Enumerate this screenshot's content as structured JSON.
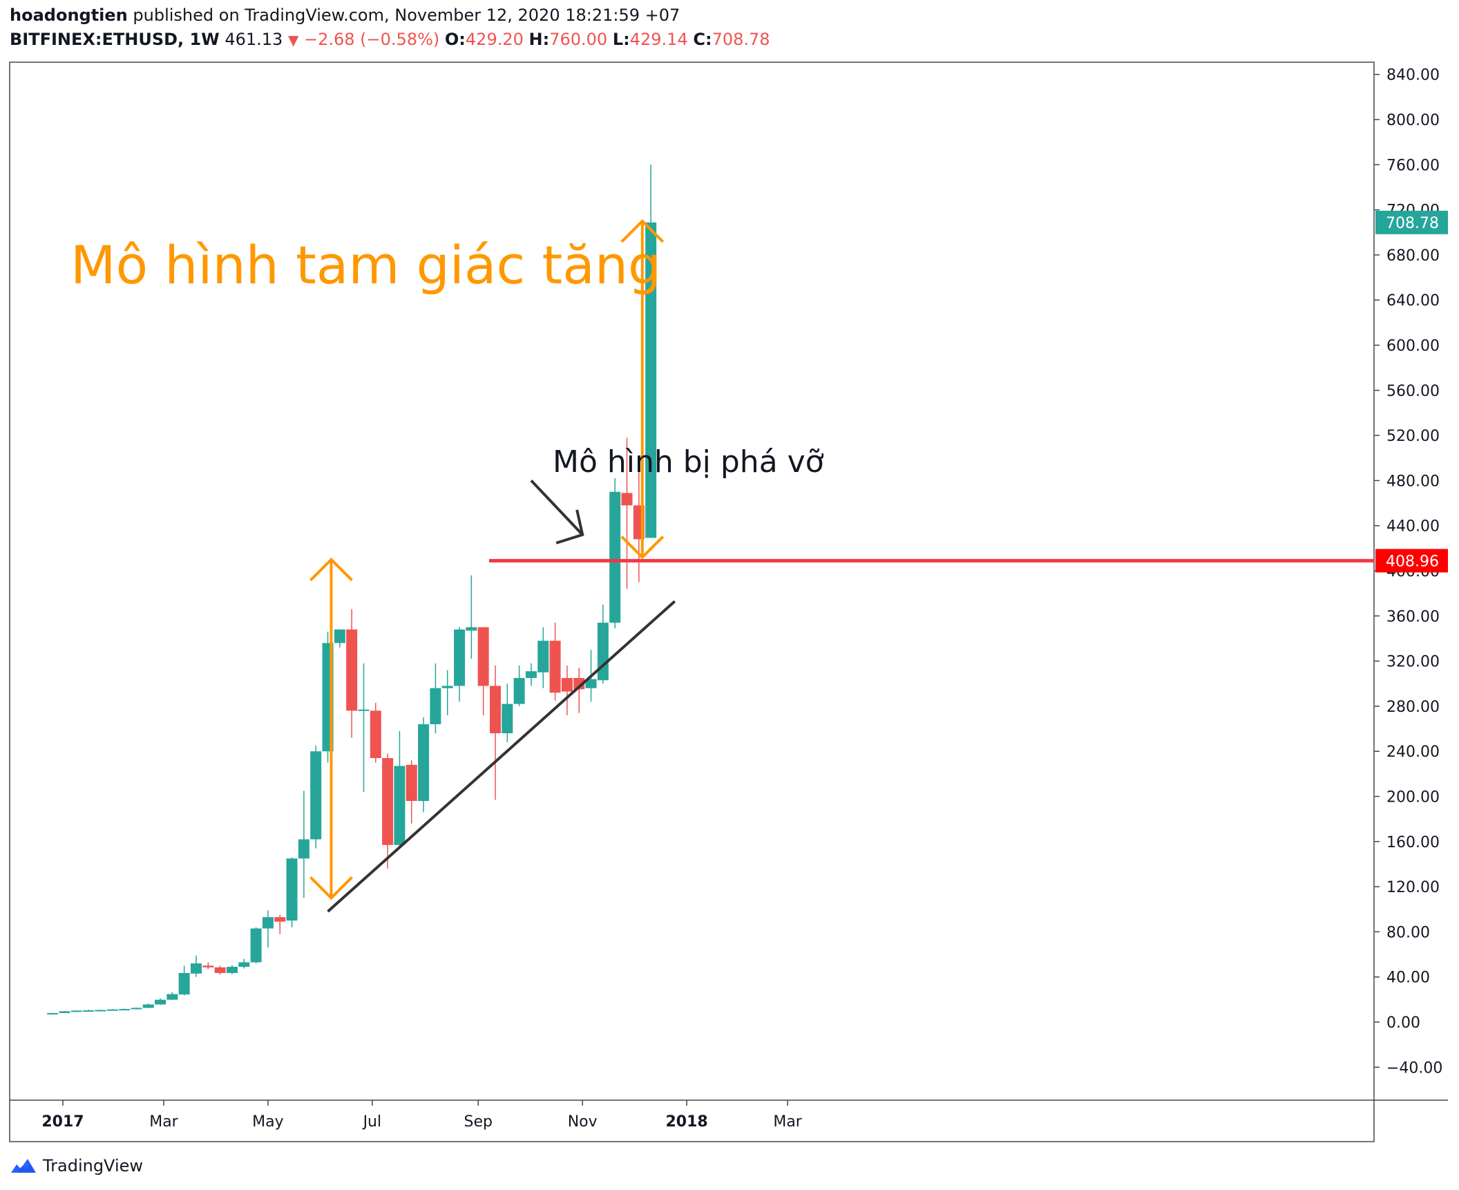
{
  "header": {
    "author": "hoadongtien",
    "published_text": "published on TradingView.com, November 12, 2020 18:21:59 +07",
    "symbol": "BITFINEX:ETHUSD, 1W",
    "last_price": "461.13",
    "change": "−2.68 (−0.58%)",
    "o_label": "O:",
    "o_value": "429.20",
    "h_label": "H:",
    "h_value": "760.00",
    "l_label": "L:",
    "l_value": "429.14",
    "c_label": "C:",
    "c_value": "708.78"
  },
  "footer": {
    "brand": "TradingView"
  },
  "colors": {
    "up": "#26a69a",
    "down": "#ef5350",
    "annotation": "#ff9800",
    "resistance": "#f23645",
    "trendline": "#333333"
  },
  "chart_data": {
    "type": "candlestick",
    "symbol": "BITFINEX:ETHUSD",
    "interval": "1W",
    "title": "Mô hình tam giác tăng",
    "annotation_text": "Mô hình bị phá vỡ",
    "x_ticks": [
      "2017",
      "Mar",
      "May",
      "Jul",
      "Sep",
      "Nov",
      "2018",
      "Mar"
    ],
    "y_ticks": [
      "840.00",
      "800.00",
      "760.00",
      "720.00",
      "680.00",
      "640.00",
      "600.00",
      "560.00",
      "520.00",
      "480.00",
      "440.00",
      "400.00",
      "360.00",
      "320.00",
      "280.00",
      "240.00",
      "200.00",
      "160.00",
      "120.00",
      "80.00",
      "40.00",
      "0.00",
      "−40.00"
    ],
    "ylim": [
      -60,
      860
    ],
    "price_labels": {
      "last_close": "708.78",
      "resistance": "408.96"
    },
    "resistance_level": 408.96,
    "trendline": {
      "from": [
        "2017-06-05",
        98
      ],
      "to": [
        "2017-12-25",
        373
      ]
    },
    "measure_arrows": [
      {
        "date": "2017-06-07",
        "from": 410,
        "to": 110
      },
      {
        "date": "2017-12-06",
        "from": 710,
        "to": 412
      }
    ],
    "break_arrow": {
      "from": [
        "2017-10-02",
        480
      ],
      "to": [
        "2017-11-01",
        432
      ]
    },
    "candles": [
      [
        "2016-12-26",
        7.9,
        8.2,
        7.6,
        8.0
      ],
      [
        "2017-01-02",
        8.0,
        9.8,
        7.9,
        9.6
      ],
      [
        "2017-01-09",
        9.6,
        10.5,
        9.3,
        10.2
      ],
      [
        "2017-01-16",
        10.2,
        11.0,
        9.8,
        10.4
      ],
      [
        "2017-01-23",
        10.4,
        11.2,
        10.1,
        10.7
      ],
      [
        "2017-01-30",
        10.7,
        11.5,
        10.5,
        11.2
      ],
      [
        "2017-02-06",
        11.2,
        12.0,
        10.9,
        11.6
      ],
      [
        "2017-02-13",
        11.6,
        13.0,
        11.3,
        12.6
      ],
      [
        "2017-02-20",
        12.6,
        16.5,
        12.3,
        15.6
      ],
      [
        "2017-02-27",
        15.6,
        21.0,
        15.2,
        19.8
      ],
      [
        "2017-03-06",
        19.8,
        26.5,
        19.5,
        24.8
      ],
      [
        "2017-03-13",
        24.5,
        50.0,
        23.5,
        43.5
      ],
      [
        "2017-03-20",
        43.0,
        59.0,
        40.0,
        52.0
      ],
      [
        "2017-03-27",
        50.0,
        53.0,
        47.0,
        48.5
      ],
      [
        "2017-04-03",
        48.5,
        50.0,
        42.0,
        43.5
      ],
      [
        "2017-04-10",
        43.5,
        50.5,
        42.5,
        49.0
      ],
      [
        "2017-04-17",
        49.0,
        56.0,
        47.5,
        53.0
      ],
      [
        "2017-04-24",
        53.0,
        84.0,
        52.0,
        83.0
      ],
      [
        "2017-05-01",
        83.0,
        99.0,
        66.0,
        93.0
      ],
      [
        "2017-05-08",
        93.0,
        95.0,
        78.0,
        89.0
      ],
      [
        "2017-05-15",
        90.0,
        146.0,
        84.0,
        145.0
      ],
      [
        "2017-05-22",
        145.0,
        205.0,
        110.0,
        162.0
      ],
      [
        "2017-05-29",
        162.0,
        245.0,
        154.0,
        240.0
      ],
      [
        "2017-06-05",
        240.0,
        346.0,
        230.0,
        336.0
      ],
      [
        "2017-06-12",
        336.0,
        348.0,
        332.0,
        348.0
      ],
      [
        "2017-06-19",
        348.0,
        366.0,
        252.0,
        276.0
      ],
      [
        "2017-06-26",
        276.0,
        318.0,
        204.0,
        277.0
      ],
      [
        "2017-07-03",
        276.0,
        283.0,
        230.0,
        234.0
      ],
      [
        "2017-07-10",
        234.0,
        238.0,
        136.0,
        157.0
      ],
      [
        "2017-07-17",
        157.0,
        258.0,
        154.0,
        227.0
      ],
      [
        "2017-07-24",
        228.0,
        232.0,
        176.0,
        196.0
      ],
      [
        "2017-07-31",
        196.0,
        270.0,
        186.0,
        264.0
      ],
      [
        "2017-08-07",
        264.0,
        318.0,
        256.0,
        296.0
      ],
      [
        "2017-08-14",
        296.0,
        312.0,
        272.0,
        298.0
      ],
      [
        "2017-08-21",
        298.0,
        350.0,
        284.0,
        348.0
      ],
      [
        "2017-08-28",
        347.0,
        396.0,
        322.0,
        350.0
      ],
      [
        "2017-09-04",
        350.0,
        350.0,
        272.0,
        298.0
      ],
      [
        "2017-09-11",
        298.0,
        316.0,
        197.0,
        256.0
      ],
      [
        "2017-09-18",
        256.0,
        300.0,
        248.0,
        282.0
      ],
      [
        "2017-09-25",
        282.0,
        316.0,
        280.0,
        305.0
      ],
      [
        "2017-10-02",
        305.0,
        318.0,
        298.0,
        311.0
      ],
      [
        "2017-10-09",
        310.0,
        350.0,
        296.0,
        338.0
      ],
      [
        "2017-10-16",
        338.0,
        354.0,
        285.0,
        292.0
      ],
      [
        "2017-10-23",
        305.0,
        316.0,
        272.0,
        293.0
      ],
      [
        "2017-10-30",
        305.0,
        314.0,
        274.0,
        295.0
      ],
      [
        "2017-11-06",
        296.0,
        330.0,
        284.0,
        304.0
      ],
      [
        "2017-11-13",
        303.0,
        370.0,
        300.0,
        354.0
      ],
      [
        "2017-11-20",
        354.0,
        482.0,
        349.0,
        470.0
      ],
      [
        "2017-11-27",
        469.0,
        518.0,
        384.0,
        458.0
      ],
      [
        "2017-12-04",
        458.0,
        488.0,
        390.0,
        428.0
      ],
      [
        "2017-12-11",
        429.2,
        760.0,
        429.14,
        708.78
      ]
    ]
  }
}
